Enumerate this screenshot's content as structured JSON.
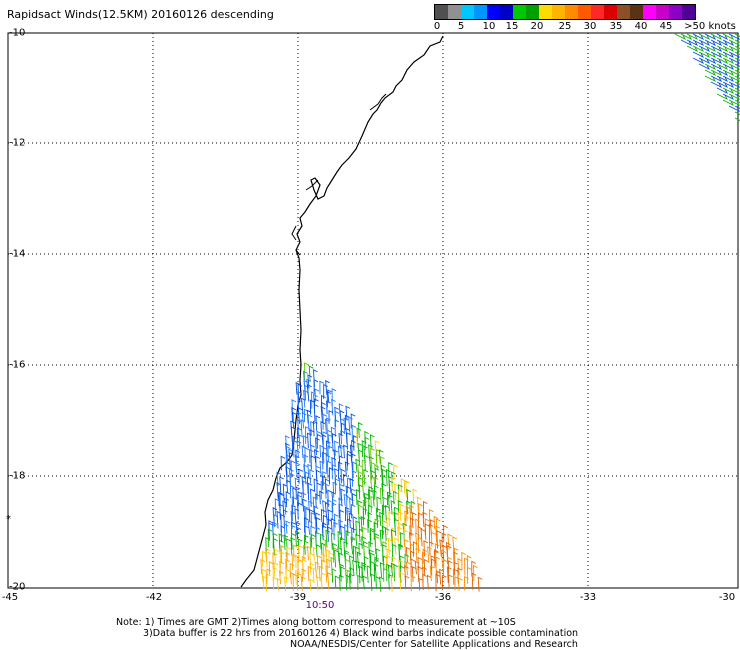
{
  "title": "Rapidsact Winds(12.5KM) 20160126 descending",
  "legend": {
    "colors": [
      "#505050",
      "#909090",
      "#00c8ff",
      "#0096ff",
      "#0000ff",
      "#0000c8",
      "#00c800",
      "#00a000",
      "#ffdc00",
      "#ffb400",
      "#ff8c00",
      "#ff5a00",
      "#ff2828",
      "#dc0000",
      "#8c5028",
      "#5a3214",
      "#ff00ff",
      "#c800c8",
      "#8c00c8",
      "#500096"
    ],
    "labels": [
      "0",
      "5",
      "10",
      "15",
      "20",
      "25",
      "30",
      "35",
      "40",
      "45",
      ">50 knots"
    ]
  },
  "axes": {
    "y_labels": [
      "-10",
      "-12",
      "-14",
      "-16",
      "-18",
      "-20"
    ],
    "x_labels": [
      "-45",
      "-42",
      "-39",
      "-36",
      "-33",
      "-30"
    ]
  },
  "time_label": "10:50",
  "notes": [
    "Note: 1) Times are GMT 2)Times along bottom correspond to measurement at ~10S",
    "3)Data buffer is 22 hrs from 20160126 4) Black wind barbs indicate possible contamination",
    "NOAA/NESDIS/Center for Satellite Applications and Research"
  ]
}
